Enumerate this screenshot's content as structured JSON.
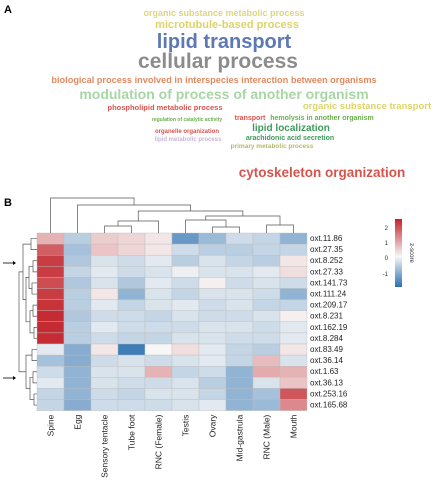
{
  "panel_a": {
    "label": "A",
    "words": [
      {
        "text": "organic substance metabolic process",
        "color": "#dcd683",
        "weight": 0.28
      },
      {
        "text": "microtubule-based process",
        "color": "#dcd46a",
        "weight": 0.36
      },
      {
        "text": "lipid transport",
        "color": "#5c78b5",
        "weight": 0.78
      },
      {
        "text": "cellular process",
        "color": "#8c8c8c",
        "weight": 0.82
      },
      {
        "text": "biological process involved in interspecies interaction between organisms",
        "color": "#e08a62",
        "weight": 0.3
      },
      {
        "text": "modulation of process of another organism",
        "color": "#a9d6a5",
        "weight": 0.52
      },
      {
        "text": "phospholipid metabolic process",
        "color": "#d9534d",
        "weight": 0.2
      },
      {
        "text": "organic substance transport",
        "color": "#dcd46a",
        "weight": 0.28
      },
      {
        "text": "transport",
        "color": "#d9534d",
        "weight": 0.18
      },
      {
        "text": "hemolysis in another organism",
        "color": "#6ab04c",
        "weight": 0.18
      },
      {
        "text": "regulation of catalytic activity",
        "color": "#6ab04c",
        "weight": 0.1
      },
      {
        "text": "lipid localization",
        "color": "#3f9a5c",
        "weight": 0.3
      },
      {
        "text": "organelle organization",
        "color": "#d9534d",
        "weight": 0.15
      },
      {
        "text": "arachidonic acid secretion",
        "color": "#3f9a5c",
        "weight": 0.2
      },
      {
        "text": "primary metabolic process",
        "color": "#b8b76d",
        "weight": 0.16
      },
      {
        "text": "lipid metabolic process",
        "color": "#c9b6d8",
        "weight": 0.16
      },
      {
        "text": "cytoskeleton organization",
        "color": "#d9534d",
        "weight": 0.5
      }
    ]
  },
  "panel_b": {
    "label": "B",
    "colorbar_title": "z-score",
    "colorbar_ticks": [
      "2",
      "1",
      "0",
      "-1"
    ]
  },
  "chart_data": {
    "type": "heatmap",
    "columns": [
      "Spine",
      "Egg",
      "Sensory tentacle",
      "Tube foot",
      "RNC (Female)",
      "Testis",
      "Ovary",
      "Mid-gastrula",
      "RNC (Male)",
      "Mouth"
    ],
    "rows": [
      "oxt.11.86",
      "oxt.27.35",
      "oxt.8.252",
      "oxt.27.33",
      "oxt.141.73",
      "oxt.111.24",
      "oxt.209.17",
      "oxt.8.231",
      "oxt.162.19",
      "oxt.8.284",
      "oxt.83.49",
      "oxt.36.14",
      "oxt.1.63",
      "oxt.36.13",
      "oxt.253.16",
      "oxt.165.68"
    ],
    "values": [
      [
        0.8,
        -0.6,
        0.5,
        0.4,
        0.2,
        -1.4,
        -0.9,
        -0.4,
        -0.5,
        -1.0
      ],
      [
        1.8,
        -0.8,
        0.6,
        0.4,
        0.2,
        -0.4,
        -0.6,
        -0.6,
        -0.5,
        -0.5
      ],
      [
        2.2,
        -0.7,
        -0.3,
        -0.4,
        -0.2,
        -0.6,
        -0.3,
        -0.5,
        -0.6,
        0.2
      ],
      [
        2.2,
        -0.5,
        -0.2,
        -0.4,
        -0.3,
        -0.1,
        -0.3,
        -0.3,
        -0.2,
        0.3
      ],
      [
        2.0,
        -0.7,
        -0.3,
        -0.7,
        -0.2,
        -0.4,
        0.1,
        -0.4,
        -0.3,
        -0.4
      ],
      [
        2.2,
        -0.6,
        0.2,
        -1.0,
        -0.3,
        -0.5,
        -0.3,
        -0.3,
        -0.4,
        -1.0
      ],
      [
        2.3,
        -0.6,
        -0.2,
        -0.5,
        -0.3,
        -0.2,
        -0.4,
        -0.3,
        -0.5,
        -0.5
      ],
      [
        2.4,
        -0.7,
        -0.4,
        -0.4,
        -0.5,
        -0.3,
        -0.4,
        -0.4,
        -0.3,
        0.1
      ],
      [
        2.4,
        -0.6,
        -0.2,
        -0.4,
        -0.4,
        -0.4,
        -0.3,
        -0.3,
        -0.4,
        -0.2
      ],
      [
        2.4,
        -0.6,
        -0.4,
        -0.5,
        -0.5,
        -0.3,
        -0.3,
        -0.4,
        -0.4,
        -0.2
      ],
      [
        -0.2,
        -1.1,
        0.2,
        -1.8,
        0.0,
        0.3,
        -0.2,
        -0.5,
        -0.6,
        0.2
      ],
      [
        -0.8,
        -1.1,
        -0.4,
        -0.3,
        -0.4,
        -0.3,
        -0.2,
        -0.5,
        0.7,
        -0.3
      ],
      [
        -0.4,
        -1.0,
        -0.3,
        -0.3,
        0.8,
        -0.5,
        -0.4,
        -1.0,
        0.9,
        0.8
      ],
      [
        -0.2,
        -1.0,
        -0.3,
        -0.4,
        -0.4,
        -0.3,
        -0.6,
        -1.0,
        -0.3,
        0.6
      ],
      [
        -0.5,
        -1.0,
        -0.4,
        -0.5,
        -0.3,
        -0.3,
        -0.5,
        -1.0,
        -0.8,
        1.9
      ],
      [
        -0.5,
        -1.1,
        -0.4,
        -0.4,
        -0.4,
        -0.3,
        -0.2,
        -1.0,
        -0.9,
        1.3
      ]
    ],
    "color_scale": {
      "low": "#2b6fb0",
      "mid": "#f7f7f7",
      "high": "#c2232a",
      "range": [
        -2,
        2.5
      ]
    },
    "row_groups": [
      10,
      6
    ]
  }
}
